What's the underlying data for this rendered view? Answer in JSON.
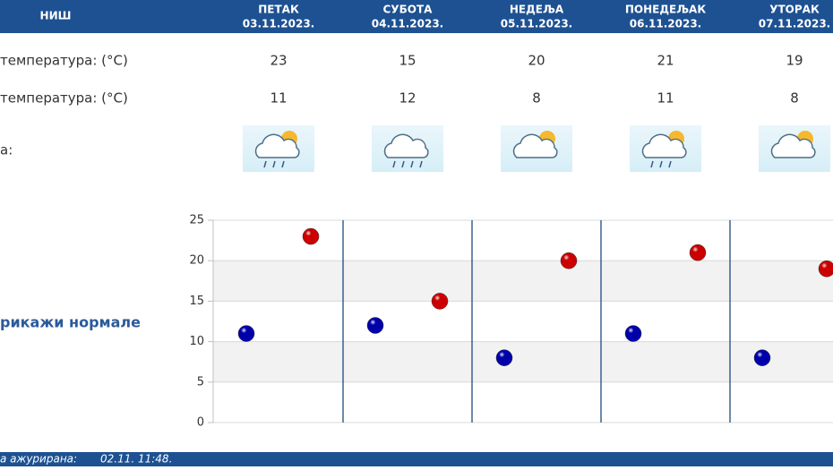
{
  "header": {
    "city": "НИШ",
    "days": [
      {
        "name": "ПЕТАК",
        "date": "03.11.2023."
      },
      {
        "name": "СУБОТА",
        "date": "04.11.2023."
      },
      {
        "name": "НЕДЕЉА",
        "date": "05.11.2023."
      },
      {
        "name": "ПОНЕДЕЉАК",
        "date": "06.11.2023."
      },
      {
        "name": "УТОРАК",
        "date": "07.11.2023."
      }
    ]
  },
  "rows": {
    "max_label": "температура: (°C)",
    "min_label": "температура: (°C)",
    "weather_label": "а:"
  },
  "toggle": "рикажи нормале",
  "footer": {
    "label": "а ажурирана:",
    "time": "02.11. 11:48."
  },
  "chart_data": {
    "type": "scatter",
    "series": [
      {
        "color": "#cc0000",
        "values": [
          23,
          15,
          20,
          21,
          19
        ]
      },
      {
        "color": "#0000aa",
        "values": [
          11,
          12,
          8,
          11,
          8
        ]
      }
    ],
    "ylim": [
      0,
      25
    ],
    "yticks": [
      0,
      5,
      10,
      15,
      20,
      25
    ],
    "grid": true
  }
}
